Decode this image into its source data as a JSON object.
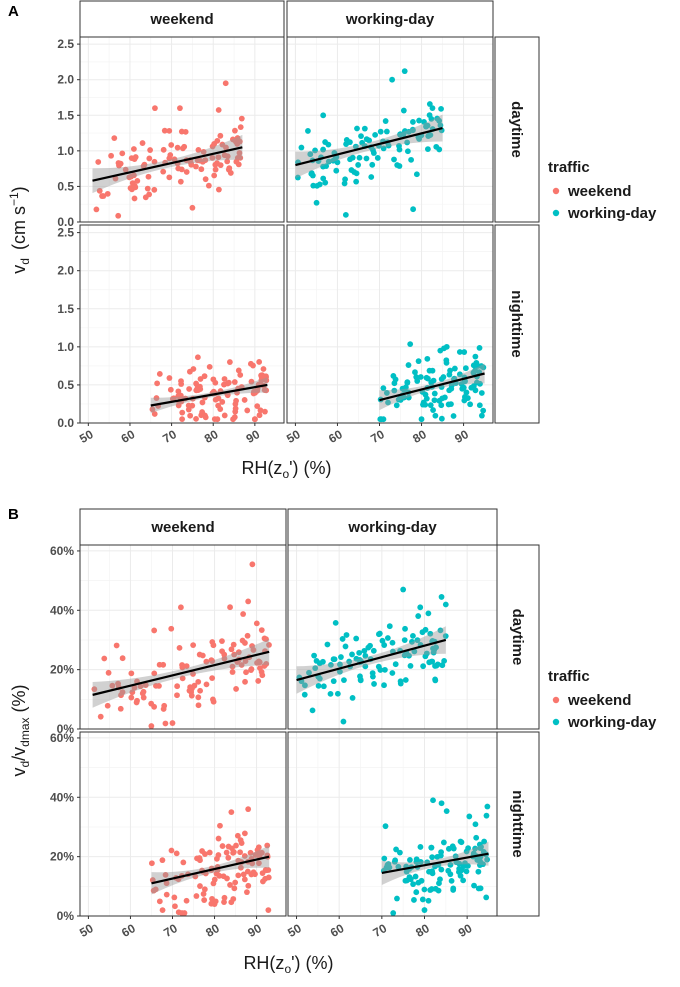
{
  "chart_data": [
    {
      "panel_letter": "A",
      "type": "scatter",
      "facets": {
        "columns": [
          "weekend",
          "working-day"
        ],
        "rows": [
          "daytime",
          "nighttime"
        ]
      },
      "xlabel": "RH(z",
      "xlabel_sub": "o",
      "xlabel_tail": "')  (%)",
      "ylabel": "v",
      "ylabel_sub": "d",
      "ylabel_unit": "(cm  s",
      "ylabel_sup": "−1",
      "ylabel_close": ")",
      "xlim": [
        48,
        97
      ],
      "ylim": [
        0,
        2.6
      ],
      "yticks": [
        0,
        0.5,
        1.0,
        1.5,
        2.0,
        2.5
      ],
      "ytick_labels": [
        "0.0",
        "0.5",
        "1.0",
        "1.5",
        "2.0",
        "2.5"
      ],
      "xticks": [
        50,
        60,
        70,
        80,
        90
      ],
      "xtick_labels": [
        "50",
        "60",
        "70",
        "80",
        "90"
      ],
      "legend": {
        "title": "traffic",
        "entries": [
          "weekend",
          "working-day"
        ],
        "placement": "right"
      },
      "fits": {
        "weekend|daytime": {
          "x": [
            51,
            87
          ],
          "y": [
            0.58,
            1.05
          ],
          "band": 0.12
        },
        "working-day|daytime": {
          "x": [
            50,
            85
          ],
          "y": [
            0.8,
            1.32
          ],
          "band": 0.13
        },
        "weekend|nighttime": {
          "x": [
            65,
            93
          ],
          "y": [
            0.23,
            0.5
          ],
          "band": 0.07
        },
        "working-day|nighttime": {
          "x": [
            70,
            95
          ],
          "y": [
            0.3,
            0.65
          ],
          "band": 0.09
        }
      },
      "spread": 0.28,
      "outliers": {
        "weekend|daytime": [
          [
            83,
            1.95
          ],
          [
            72,
            1.6
          ],
          [
            66,
            1.6
          ],
          [
            75,
            0.2
          ]
        ],
        "working-day|daytime": [
          [
            76,
            2.12
          ],
          [
            62,
            0.1
          ],
          [
            78,
            0.18
          ],
          [
            73,
            2.0
          ]
        ],
        "weekend|nighttime": [
          [
            84,
            0.8
          ],
          [
            78,
            0.1
          ]
        ],
        "working-day|nighttime": [
          [
            86,
            1.0
          ],
          [
            80,
            0.05
          ]
        ]
      },
      "ymin_clip": 0.05
    },
    {
      "panel_letter": "B",
      "type": "scatter",
      "facets": {
        "columns": [
          "weekend",
          "working-day"
        ],
        "rows": [
          "daytime",
          "nighttime"
        ]
      },
      "xlabel": "RH(z",
      "xlabel_sub": "o",
      "xlabel_tail": "')  (%)",
      "ylabel": "v",
      "ylabel_sub": "d",
      "ylabel_mid": "/v",
      "ylabel_sub2": "dmax",
      "ylabel_unit": " (%)",
      "xlim": [
        48,
        97
      ],
      "ylim": [
        0,
        62
      ],
      "yticks": [
        0,
        20,
        40,
        60
      ],
      "ytick_labels": [
        "0%",
        "20%",
        "40%",
        "60%"
      ],
      "xticks": [
        50,
        60,
        70,
        80,
        90
      ],
      "xtick_labels": [
        "50",
        "60",
        "70",
        "80",
        "90"
      ],
      "legend": {
        "title": "traffic",
        "entries": [
          "weekend",
          "working-day"
        ],
        "placement": "right"
      },
      "fits": {
        "weekend|daytime": {
          "x": [
            51,
            93
          ],
          "y": [
            11.5,
            26
          ],
          "band": 3.0
        },
        "working-day|daytime": {
          "x": [
            50,
            85
          ],
          "y": [
            16.5,
            30
          ],
          "band": 3.2
        },
        "weekend|nighttime": {
          "x": [
            65,
            93
          ],
          "y": [
            11,
            20
          ],
          "band": 2.6
        },
        "working-day|nighttime": {
          "x": [
            70,
            95
          ],
          "y": [
            14.5,
            21
          ],
          "band": 2.8
        }
      },
      "spread": 7.5,
      "outliers": {
        "weekend|daytime": [
          [
            89,
            55.5
          ],
          [
            72,
            41
          ],
          [
            88,
            43
          ],
          [
            70,
            2
          ]
        ],
        "working-day|daytime": [
          [
            75,
            47
          ],
          [
            61,
            2.5
          ],
          [
            84,
            44.5
          ],
          [
            79,
            41
          ]
        ],
        "weekend|nighttime": [
          [
            88,
            36
          ],
          [
            84,
            35
          ],
          [
            80,
            4
          ]
        ],
        "working-day|nighttime": [
          [
            82,
            39
          ],
          [
            84,
            38
          ],
          [
            80,
            2
          ]
        ]
      },
      "ymin_clip": 1.0
    }
  ],
  "colors": {
    "weekend": "#f8766d",
    "working-day": "#00bfc4",
    "band": "#999999",
    "fit_line": "#000000",
    "strip_bg": "#ffffff",
    "grid": "#ebebeb"
  }
}
